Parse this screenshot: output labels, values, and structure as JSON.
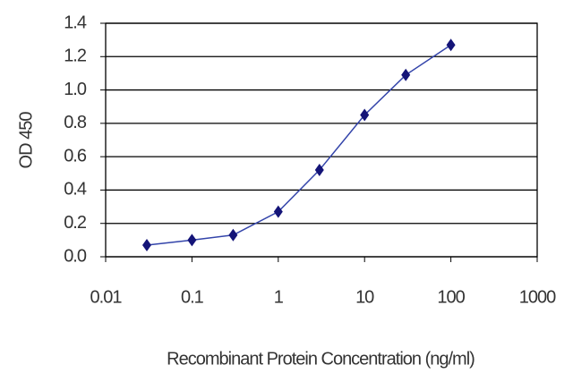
{
  "chart_data": {
    "type": "line",
    "xscale": "log",
    "x_label": "Recombinant Protein Concentration (ng/ml)",
    "y_label": "OD 450",
    "x": [
      0.03,
      0.1,
      0.3,
      1,
      3,
      10,
      30,
      100
    ],
    "series": [
      {
        "color": "#3344aa",
        "marker_color": "#141478",
        "values": [
          0.07,
          0.1,
          0.13,
          0.27,
          0.52,
          0.85,
          1.09,
          1.27
        ]
      }
    ],
    "xlim": [
      0.01,
      1000
    ],
    "xticks": [
      0.01,
      0.1,
      1,
      10,
      100,
      1000
    ],
    "ylim": [
      0,
      1.4
    ],
    "yticks": [
      {
        "value": 0,
        "label": "0.0"
      },
      0.2,
      0.4,
      0.6,
      0.8,
      {
        "value": 1,
        "label": "1.0"
      },
      1.2,
      1.4
    ],
    "grid": true
  }
}
